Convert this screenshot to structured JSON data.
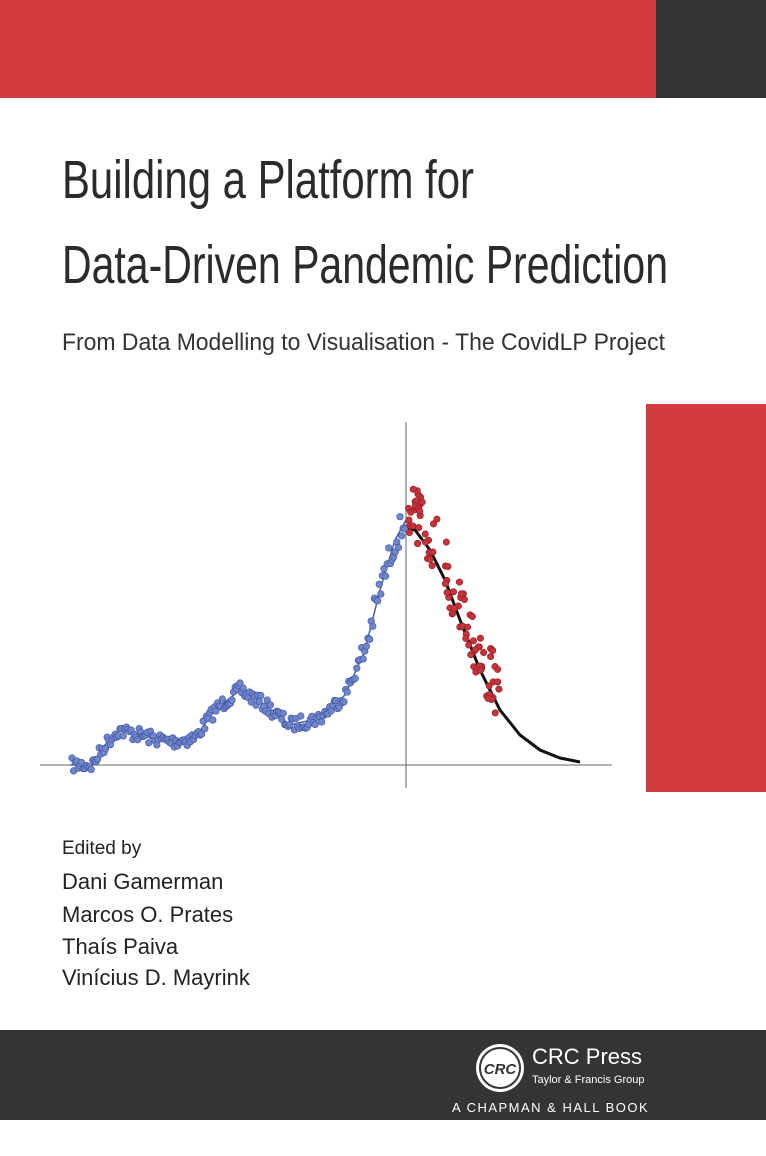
{
  "cover": {
    "title_lines": [
      "Building a Platform for",
      "Data-Driven Pandemic Prediction"
    ],
    "subtitle": "From Data Modelling to Visualisation - The CovidLP Project",
    "editors_label": "Edited by",
    "editors": [
      "Dani Gamerman",
      "Marcos O. Prates",
      "Thaís Paiva",
      "Vinícius D. Mayrink"
    ],
    "publisher": {
      "logo": "CRC",
      "name": "CRC Press",
      "group": "Taylor & Francis Group",
      "imprint": "A CHAPMAN & HALL BOOK"
    }
  }
}
